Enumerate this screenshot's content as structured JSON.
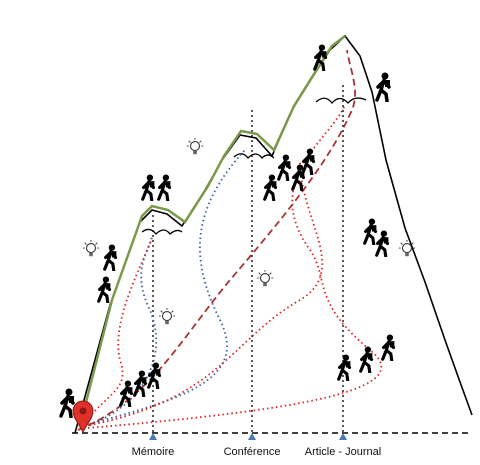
{
  "axis": {
    "labels": [
      "Mémoire",
      "Conférence",
      "Article - Journal"
    ]
  }
}
